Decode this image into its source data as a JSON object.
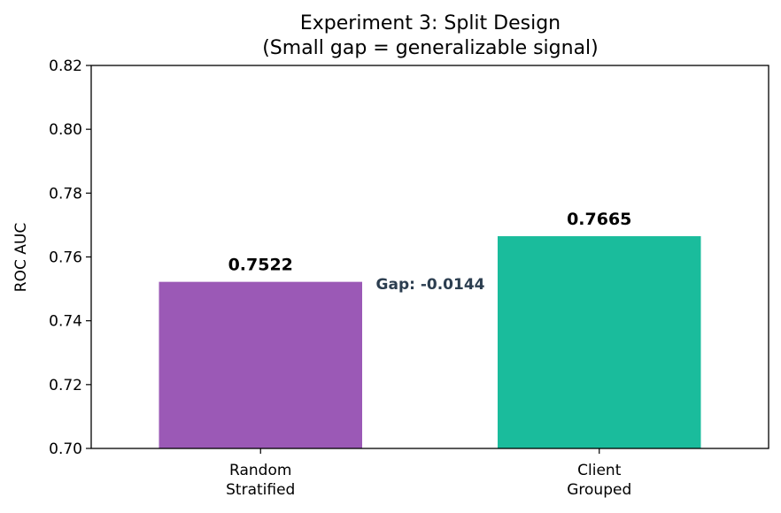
{
  "chart_data": {
    "type": "bar",
    "title": [
      "Experiment 3: Split Design",
      "(Small gap = generalizable signal)"
    ],
    "xlabel": "",
    "ylabel": "ROC AUC",
    "ylim": [
      0.7,
      0.82
    ],
    "yticks": [
      "0.70",
      "0.72",
      "0.74",
      "0.76",
      "0.78",
      "0.80",
      "0.82"
    ],
    "categories": [
      [
        "Random",
        "Stratified"
      ],
      [
        "Client",
        "Grouped"
      ]
    ],
    "values": [
      0.7522,
      0.7665
    ],
    "value_labels": [
      "0.7522",
      "0.7665"
    ],
    "colors": [
      "#9b59b6",
      "#1abc9c"
    ],
    "annotation": "Gap: -0.0144",
    "grid": false,
    "legend": "none"
  }
}
